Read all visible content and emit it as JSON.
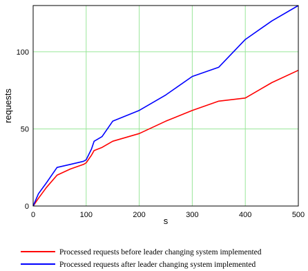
{
  "chart_data": {
    "type": "line",
    "title": "",
    "xlabel": "s",
    "ylabel": "requests",
    "xlim": [
      0,
      500
    ],
    "ylim": [
      0,
      130
    ],
    "x_ticks": [
      0,
      100,
      200,
      300,
      400,
      500
    ],
    "y_ticks": [
      0,
      50,
      100
    ],
    "grid": true,
    "grid_color": "#99e699",
    "legend_position": "bottom",
    "series": [
      {
        "name": "Processed requests before leader changing system implemented",
        "color": "#ff0000",
        "x": [
          0,
          10,
          25,
          45,
          70,
          95,
          100,
          110,
          115,
          130,
          150,
          200,
          250,
          300,
          350,
          400,
          450,
          500
        ],
        "y": [
          0,
          5,
          12,
          20,
          24,
          27,
          28,
          33,
          36,
          38,
          42,
          47,
          55,
          62,
          68,
          70,
          80,
          88
        ]
      },
      {
        "name": "Processed requests after leader changing system implemented",
        "color": "#0000ff",
        "x": [
          0,
          10,
          25,
          45,
          70,
          95,
          100,
          110,
          115,
          130,
          150,
          200,
          250,
          300,
          350,
          400,
          450,
          500
        ],
        "y": [
          0,
          8,
          15,
          25,
          27,
          29,
          30,
          37,
          42,
          45,
          55,
          62,
          72,
          84,
          90,
          108,
          120,
          130
        ]
      }
    ]
  }
}
